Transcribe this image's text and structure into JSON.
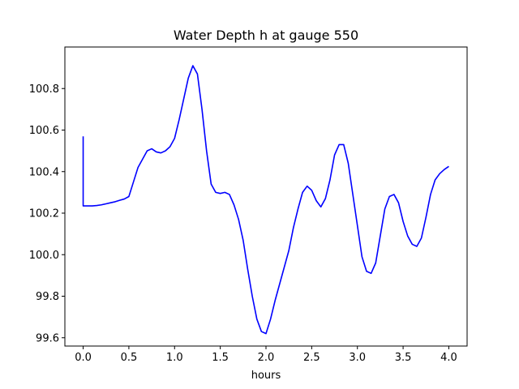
{
  "chart_data": {
    "type": "line",
    "title": "Water Depth h at gauge 550",
    "xlabel": "hours",
    "ylabel": "",
    "xlim": [
      -0.2,
      4.2
    ],
    "ylim": [
      99.56,
      101.0
    ],
    "xticks": [
      0.0,
      0.5,
      1.0,
      1.5,
      2.0,
      2.5,
      3.0,
      3.5,
      4.0
    ],
    "xtick_labels": [
      "0.0",
      "0.5",
      "1.0",
      "1.5",
      "2.0",
      "2.5",
      "3.0",
      "3.5",
      "4.0"
    ],
    "yticks": [
      99.6,
      99.8,
      100.0,
      100.2,
      100.4,
      100.6,
      100.8
    ],
    "ytick_labels": [
      "99.6",
      "99.8",
      "100.0",
      "100.2",
      "100.4",
      "100.6",
      "100.8"
    ],
    "grid": false,
    "legend": "none",
    "series": [
      {
        "color": "#0000ff",
        "x": [
          0.0,
          0.0,
          0.0,
          0.05,
          0.1,
          0.15,
          0.2,
          0.25,
          0.3,
          0.35,
          0.4,
          0.45,
          0.5,
          0.55,
          0.6,
          0.65,
          0.7,
          0.75,
          0.8,
          0.85,
          0.9,
          0.95,
          1.0,
          1.05,
          1.1,
          1.15,
          1.2,
          1.25,
          1.3,
          1.35,
          1.4,
          1.45,
          1.5,
          1.55,
          1.6,
          1.65,
          1.7,
          1.75,
          1.8,
          1.85,
          1.9,
          1.95,
          2.0,
          2.05,
          2.1,
          2.15,
          2.2,
          2.25,
          2.3,
          2.35,
          2.4,
          2.45,
          2.5,
          2.55,
          2.6,
          2.65,
          2.7,
          2.75,
          2.8,
          2.85,
          2.9,
          2.95,
          3.0,
          3.05,
          3.1,
          3.15,
          3.2,
          3.25,
          3.3,
          3.35,
          3.4,
          3.45,
          3.5,
          3.55,
          3.6,
          3.65,
          3.7,
          3.75,
          3.8,
          3.85,
          3.9,
          3.95,
          4.0
        ],
        "y": [
          100.57,
          100.4,
          100.235,
          100.235,
          100.235,
          100.237,
          100.24,
          100.245,
          100.25,
          100.255,
          100.262,
          100.268,
          100.28,
          100.35,
          100.42,
          100.46,
          100.5,
          100.51,
          100.495,
          100.49,
          100.5,
          100.52,
          100.56,
          100.65,
          100.75,
          100.85,
          100.91,
          100.87,
          100.7,
          100.5,
          100.34,
          100.3,
          100.295,
          100.3,
          100.29,
          100.24,
          100.17,
          100.07,
          99.93,
          99.8,
          99.69,
          99.63,
          99.62,
          99.69,
          99.78,
          99.86,
          99.94,
          100.02,
          100.13,
          100.22,
          100.3,
          100.33,
          100.31,
          100.26,
          100.23,
          100.27,
          100.36,
          100.48,
          100.53,
          100.53,
          100.44,
          100.29,
          100.14,
          99.99,
          99.92,
          99.91,
          99.96,
          100.09,
          100.22,
          100.28,
          100.29,
          100.25,
          100.16,
          100.09,
          100.05,
          100.04,
          100.08,
          100.18,
          100.29,
          100.36,
          100.39,
          100.41,
          100.425
        ]
      }
    ]
  }
}
